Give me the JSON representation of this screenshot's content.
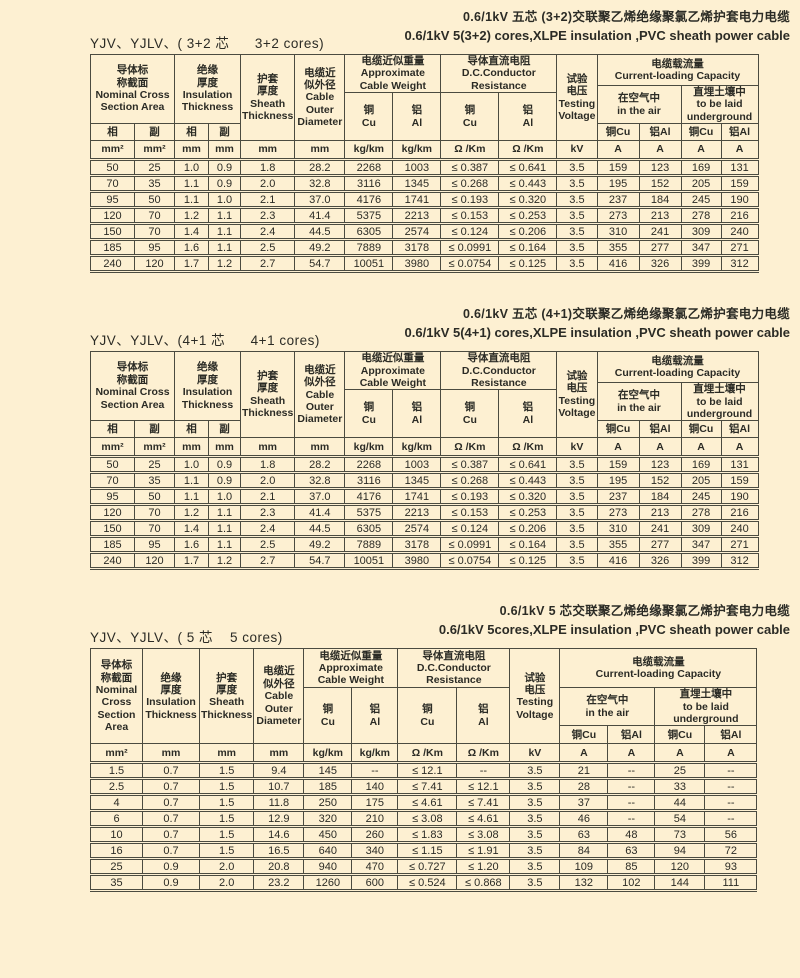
{
  "page": {
    "background_color": "#fdf0d2",
    "border_color": "#4b4b40",
    "text_color": "#2b2b25"
  },
  "hdr": {
    "nominal_split": "导体标\n称截面\nNominal Cross\nSection Area",
    "nominal_simple": "导体标\n称截面\nNominal\nCross\nSection Area",
    "phase": "相",
    "aux": "副",
    "insulation": "绝缘\n厚度\nInsulation\nThickness",
    "sheath": "护套\n厚度\nSheath\nThickness",
    "diameter": "电缆近\n似外径\nCable\nOuter\nDiameter",
    "weight": "电缆近似重量\nApproximate\nCable Weight",
    "resistance": "导体直流电阻\nD.C.Conductor\nResistance",
    "voltage": "试验\n电压\nTesting\nVoltage",
    "capacity": "电缆载流量\nCurrent-loading Capacity",
    "in_air": "在空气中\nin the air",
    "underground": "直埋土壤中\nto be laid\nunderground",
    "cu_two_line": "铜\nCu",
    "al_two_line": "铝\nAl",
    "cu_one_line": "铜Cu",
    "al_one_line": "铝Al",
    "unit_mm2": "mm²",
    "unit_mm": "mm",
    "unit_kgkm": "kg/km",
    "unit_ohm": "Ω /Km",
    "unit_kv": "kV",
    "unit_a": "A"
  },
  "sections": [
    {
      "title_zh": "0.6/1kV 五芯 (3+2)交联聚乙烯绝缘聚氯乙烯护套电力电缆",
      "title_en": "0.6/1kV 5(3+2) cores,XLPE insulation ,PVC sheath power cable",
      "model_label": "YJV、YJLV、( 3+2 芯      3+2 cores)",
      "rows": [
        [
          "50",
          "25",
          "1.0",
          "0.9",
          "1.8",
          "28.2",
          "2268",
          "1003",
          "≤ 0.387",
          "≤ 0.641",
          "3.5",
          "159",
          "123",
          "169",
          "131"
        ],
        [
          "70",
          "35",
          "1.1",
          "0.9",
          "2.0",
          "32.8",
          "3116",
          "1345",
          "≤ 0.268",
          "≤ 0.443",
          "3.5",
          "195",
          "152",
          "205",
          "159"
        ],
        [
          "95",
          "50",
          "1.1",
          "1.0",
          "2.1",
          "37.0",
          "4176",
          "1741",
          "≤ 0.193",
          "≤ 0.320",
          "3.5",
          "237",
          "184",
          "245",
          "190"
        ],
        [
          "120",
          "70",
          "1.2",
          "1.1",
          "2.3",
          "41.4",
          "5375",
          "2213",
          "≤ 0.153",
          "≤ 0.253",
          "3.5",
          "273",
          "213",
          "278",
          "216"
        ],
        [
          "150",
          "70",
          "1.4",
          "1.1",
          "2.4",
          "44.5",
          "6305",
          "2574",
          "≤ 0.124",
          "≤ 0.206",
          "3.5",
          "310",
          "241",
          "309",
          "240"
        ],
        [
          "185",
          "95",
          "1.6",
          "1.1",
          "2.5",
          "49.2",
          "7889",
          "3178",
          "≤ 0.0991",
          "≤ 0.164",
          "3.5",
          "355",
          "277",
          "347",
          "271"
        ],
        [
          "240",
          "120",
          "1.7",
          "1.2",
          "2.7",
          "54.7",
          "10051",
          "3980",
          "≤ 0.0754",
          "≤ 0.125",
          "3.5",
          "416",
          "326",
          "399",
          "312"
        ]
      ]
    },
    {
      "title_zh": "0.6/1kV 五芯 (4+1)交联聚乙烯绝缘聚氯乙烯护套电力电缆",
      "title_en": "0.6/1kV 5(4+1) cores,XLPE insulation ,PVC sheath power cable",
      "model_label": "YJV、YJLV、(4+1 芯      4+1 cores)",
      "rows": [
        [
          "50",
          "25",
          "1.0",
          "0.9",
          "1.8",
          "28.2",
          "2268",
          "1003",
          "≤ 0.387",
          "≤ 0.641",
          "3.5",
          "159",
          "123",
          "169",
          "131"
        ],
        [
          "70",
          "35",
          "1.1",
          "0.9",
          "2.0",
          "32.8",
          "3116",
          "1345",
          "≤ 0.268",
          "≤ 0.443",
          "3.5",
          "195",
          "152",
          "205",
          "159"
        ],
        [
          "95",
          "50",
          "1.1",
          "1.0",
          "2.1",
          "37.0",
          "4176",
          "1741",
          "≤ 0.193",
          "≤ 0.320",
          "3.5",
          "237",
          "184",
          "245",
          "190"
        ],
        [
          "120",
          "70",
          "1.2",
          "1.1",
          "2.3",
          "41.4",
          "5375",
          "2213",
          "≤ 0.153",
          "≤ 0.253",
          "3.5",
          "273",
          "213",
          "278",
          "216"
        ],
        [
          "150",
          "70",
          "1.4",
          "1.1",
          "2.4",
          "44.5",
          "6305",
          "2574",
          "≤ 0.124",
          "≤ 0.206",
          "3.5",
          "310",
          "241",
          "309",
          "240"
        ],
        [
          "185",
          "95",
          "1.6",
          "1.1",
          "2.5",
          "49.2",
          "7889",
          "3178",
          "≤ 0.0991",
          "≤ 0.164",
          "3.5",
          "355",
          "277",
          "347",
          "271"
        ],
        [
          "240",
          "120",
          "1.7",
          "1.2",
          "2.7",
          "54.7",
          "10051",
          "3980",
          "≤ 0.0754",
          "≤ 0.125",
          "3.5",
          "416",
          "326",
          "399",
          "312"
        ]
      ]
    },
    {
      "title_zh": "0.6/1kV 5 芯交联聚乙烯绝缘聚氯乙烯护套电力电缆",
      "title_en": "0.6/1kV 5cores,XLPE insulation ,PVC sheath power cable",
      "model_label": "YJV、YJLV、( 5 芯    5 cores)",
      "rows": [
        [
          "1.5",
          "0.7",
          "1.5",
          "9.4",
          "145",
          "--",
          "≤ 12.1",
          "--",
          "3.5",
          "21",
          "--",
          "25",
          "--"
        ],
        [
          "2.5",
          "0.7",
          "1.5",
          "10.7",
          "185",
          "140",
          "≤ 7.41",
          "≤ 12.1",
          "3.5",
          "28",
          "--",
          "33",
          "--"
        ],
        [
          "4",
          "0.7",
          "1.5",
          "11.8",
          "250",
          "175",
          "≤ 4.61",
          "≤ 7.41",
          "3.5",
          "37",
          "--",
          "44",
          "--"
        ],
        [
          "6",
          "0.7",
          "1.5",
          "12.9",
          "320",
          "210",
          "≤ 3.08",
          "≤ 4.61",
          "3.5",
          "46",
          "--",
          "54",
          "--"
        ],
        [
          "10",
          "0.7",
          "1.5",
          "14.6",
          "450",
          "260",
          "≤ 1.83",
          "≤ 3.08",
          "3.5",
          "63",
          "48",
          "73",
          "56"
        ],
        [
          "16",
          "0.7",
          "1.5",
          "16.5",
          "640",
          "340",
          "≤ 1.15",
          "≤ 1.91",
          "3.5",
          "84",
          "63",
          "94",
          "72"
        ],
        [
          "25",
          "0.9",
          "2.0",
          "20.8",
          "940",
          "470",
          "≤ 0.727",
          "≤ 1.20",
          "3.5",
          "109",
          "85",
          "120",
          "93"
        ],
        [
          "35",
          "0.9",
          "2.0",
          "23.2",
          "1260",
          "600",
          "≤ 0.524",
          "≤ 0.868",
          "3.5",
          "132",
          "102",
          "144",
          "111"
        ]
      ]
    }
  ]
}
